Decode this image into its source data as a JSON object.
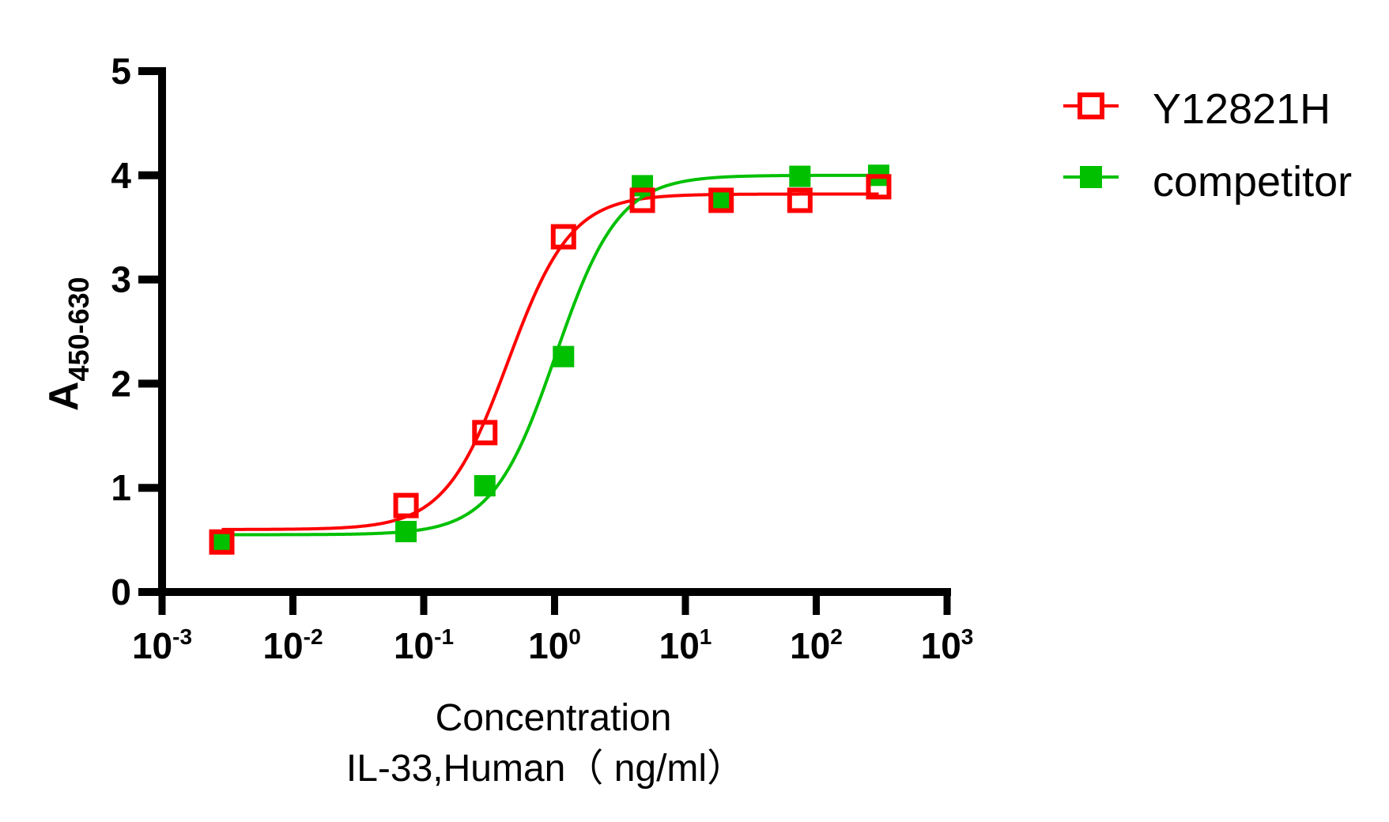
{
  "chart_data": {
    "type": "scatter",
    "title": "",
    "xlabel": "Concentration",
    "xlabel_line2": "IL-33,Human（ ng/ml）",
    "ylabel": "A",
    "ylabel_subscript": "450-630",
    "xscale": "log10",
    "xlim": [
      0.001,
      1000
    ],
    "ylim": [
      0,
      5
    ],
    "xticks": [
      {
        "base": "10",
        "exp": "-3",
        "value": 0.001
      },
      {
        "base": "10",
        "exp": "-2",
        "value": 0.01
      },
      {
        "base": "10",
        "exp": "-1",
        "value": 0.1
      },
      {
        "base": "10",
        "exp": "0",
        "value": 1
      },
      {
        "base": "10",
        "exp": "1",
        "value": 10
      },
      {
        "base": "10",
        "exp": "2",
        "value": 100
      },
      {
        "base": "10",
        "exp": "3",
        "value": 1000
      }
    ],
    "yticks": [
      "0",
      "1",
      "2",
      "3",
      "4",
      "5"
    ],
    "grid": false,
    "legend_position": "top-right",
    "x": [
      0.00286,
      0.0732,
      0.293,
      1.17,
      4.69,
      18.75,
      75,
      300
    ],
    "series": [
      {
        "name": "Y12821H",
        "color": "#ff0000",
        "marker": "open-square",
        "values": [
          0.48,
          0.83,
          1.53,
          3.41,
          3.76,
          3.76,
          3.76,
          3.89
        ],
        "fit": {
          "model": "4PL",
          "bottom": 0.6,
          "top": 3.82,
          "ec50": 0.44,
          "hill": 1.8
        }
      },
      {
        "name": "competitor",
        "color": "#00c000",
        "marker": "filled-square",
        "values": [
          0.47,
          0.58,
          1.02,
          2.26,
          3.9,
          3.76,
          3.99,
          4.0
        ],
        "fit": {
          "model": "4PL",
          "bottom": 0.55,
          "top": 4.0,
          "ec50": 1.02,
          "hill": 1.8
        }
      }
    ]
  }
}
